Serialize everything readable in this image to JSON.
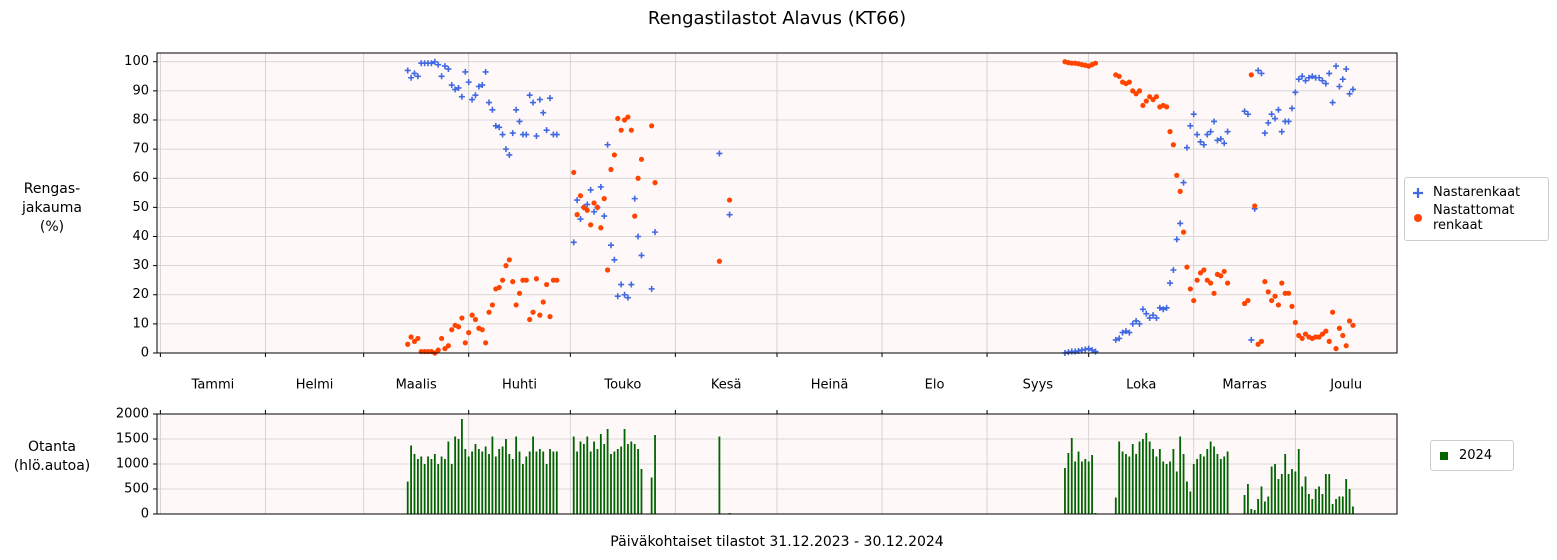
{
  "chart_data": [
    {
      "type": "scatter",
      "title": "Rengastilastot Alavus (KT66)",
      "ylabel": [
        "Rengas-",
        "jakauma",
        "(%)"
      ],
      "xlim": [
        0,
        366
      ],
      "xticks": [
        1,
        32,
        61,
        92,
        122,
        153,
        183,
        214,
        245,
        275,
        306,
        336
      ],
      "month_labels": [
        "Tammi",
        "Helmi",
        "Maalis",
        "Huhti",
        "Touko",
        "Kesä",
        "Heinä",
        "Elo",
        "Syys",
        "Loka",
        "Marras",
        "Joulu"
      ],
      "ylim": [
        0,
        103
      ],
      "yticks": [
        0,
        10,
        20,
        30,
        40,
        50,
        60,
        70,
        80,
        90,
        100
      ],
      "grid": true,
      "legend": "right",
      "x": [
        74,
        75,
        76,
        77,
        78,
        79,
        80,
        81,
        82,
        83,
        84,
        85,
        86,
        87,
        88,
        89,
        90,
        91,
        92,
        93,
        94,
        95,
        96,
        97,
        98,
        99,
        100,
        101,
        102,
        103,
        104,
        105,
        106,
        107,
        108,
        109,
        110,
        111,
        112,
        113,
        114,
        115,
        116,
        117,
        118,
        123,
        124,
        125,
        126,
        127,
        128,
        129,
        130,
        131,
        132,
        133,
        134,
        135,
        136,
        137,
        138,
        139,
        140,
        141,
        142,
        143,
        146,
        147,
        166,
        169,
        268,
        269,
        270,
        271,
        272,
        273,
        274,
        275,
        276,
        277,
        283,
        284,
        285,
        286,
        287,
        288,
        289,
        290,
        291,
        292,
        293,
        294,
        295,
        296,
        297,
        298,
        299,
        300,
        301,
        302,
        303,
        304,
        305,
        306,
        307,
        308,
        309,
        310,
        311,
        312,
        313,
        314,
        315,
        316,
        321,
        322,
        323,
        324,
        325,
        326,
        327,
        328,
        329,
        330,
        331,
        332,
        333,
        334,
        335,
        336,
        337,
        338,
        339,
        340,
        341,
        342,
        343,
        344,
        345,
        346,
        347,
        348,
        349,
        350,
        351,
        352,
        353
      ],
      "series": [
        {
          "name": "Nastarenkaat",
          "color": "#4169e1",
          "marker": "plus",
          "values": [
            97,
            94.5,
            96,
            95,
            99.5,
            99.5,
            99.5,
            99.5,
            100,
            99,
            95,
            98.5,
            97.5,
            92,
            90.5,
            91,
            88,
            96.5,
            93,
            87,
            88.5,
            91.5,
            92,
            96.5,
            86,
            83.5,
            78,
            77.5,
            75,
            70,
            68,
            75.5,
            83.5,
            79.5,
            75,
            75,
            88.5,
            86,
            74.5,
            87,
            82.5,
            76.5,
            87.5,
            75,
            75,
            38,
            52.5,
            46,
            50,
            51,
            56,
            48.5,
            50,
            57,
            47,
            71.5,
            37,
            32,
            19.5,
            23.5,
            20,
            19,
            23.5,
            53,
            40,
            33.5,
            22,
            41.5,
            68.5,
            47.5,
            0,
            0.3,
            0.5,
            0.5,
            0.7,
            1,
            1.2,
            1.5,
            1,
            0.5,
            4.5,
            5,
            7,
            7.5,
            7,
            10,
            11,
            10,
            15,
            13.5,
            12,
            13,
            12,
            15.5,
            15,
            15.5,
            24,
            28.5,
            39,
            44.5,
            58.5,
            70.5,
            78,
            82,
            75,
            72.5,
            71.5,
            75,
            76,
            79.5,
            73,
            73.5,
            72,
            76,
            83,
            82,
            4.5,
            49.5,
            97,
            96,
            75.5,
            79,
            82,
            80.5,
            83.5,
            76,
            79.5,
            79.5,
            84,
            89.5,
            94,
            95,
            93.5,
            94.5,
            95,
            94.5,
            94.5,
            93.5,
            92.5,
            96,
            86,
            98.5,
            91.5,
            94,
            97.5,
            89,
            90.5
          ]
        },
        {
          "name": "Nastattomat renkaat",
          "color": "#ff4500",
          "marker": "circle",
          "values": [
            3,
            5.5,
            4,
            5,
            0.5,
            0.5,
            0.5,
            0.5,
            0,
            1,
            5,
            1.5,
            2.5,
            8,
            9.5,
            9,
            12,
            3.5,
            7,
            13,
            11.5,
            8.5,
            8,
            3.5,
            14,
            16.5,
            22,
            22.5,
            25,
            30,
            32,
            24.5,
            16.5,
            20.5,
            25,
            25,
            11.5,
            14,
            25.5,
            13,
            17.5,
            23.5,
            12.5,
            25,
            25,
            62,
            47.5,
            54,
            50,
            49,
            44,
            51.5,
            50,
            43,
            53,
            28.5,
            63,
            68,
            80.5,
            76.5,
            80,
            81,
            76.5,
            47,
            60,
            66.5,
            78,
            58.5,
            31.5,
            52.5,
            100,
            99.7,
            99.5,
            99.5,
            99.3,
            99,
            98.8,
            98.5,
            99,
            99.5,
            95.5,
            95,
            93,
            92.5,
            93,
            90,
            89,
            90,
            85,
            86.5,
            88,
            87,
            88,
            84.5,
            85,
            84.5,
            76,
            71.5,
            61,
            55.5,
            41.5,
            29.5,
            22,
            18,
            25,
            27.5,
            28.5,
            25,
            24,
            20.5,
            27,
            26.5,
            28,
            24,
            17,
            18,
            95.5,
            50.5,
            3,
            4,
            24.5,
            21,
            18,
            19.5,
            16.5,
            24,
            20.5,
            20.5,
            16,
            10.5,
            6,
            5,
            6.5,
            5.5,
            5,
            5.5,
            5.5,
            6.5,
            7.5,
            4,
            14,
            1.5,
            8.5,
            6,
            2.5,
            11,
            9.5
          ]
        }
      ]
    },
    {
      "type": "bar",
      "ylabel": [
        "Otanta",
        "(hlö.autoa)"
      ],
      "xlabel": "Päiväkohtaiset tilastot 31.12.2023 - 30.12.2024",
      "xlim": [
        0,
        366
      ],
      "xticks": [
        1,
        32,
        61,
        92,
        122,
        153,
        183,
        214,
        245,
        275,
        306,
        336
      ],
      "ylim": [
        0,
        2000
      ],
      "yticks": [
        0,
        500,
        1000,
        1500,
        2000
      ],
      "grid": true,
      "legend": "right",
      "x": [
        74,
        75,
        76,
        77,
        78,
        79,
        80,
        81,
        82,
        83,
        84,
        85,
        86,
        87,
        88,
        89,
        90,
        91,
        92,
        93,
        94,
        95,
        96,
        97,
        98,
        99,
        100,
        101,
        102,
        103,
        104,
        105,
        106,
        107,
        108,
        109,
        110,
        111,
        112,
        113,
        114,
        115,
        116,
        117,
        118,
        123,
        124,
        125,
        126,
        127,
        128,
        129,
        130,
        131,
        132,
        133,
        134,
        135,
        136,
        137,
        138,
        139,
        140,
        141,
        142,
        143,
        146,
        147,
        166,
        169,
        268,
        269,
        270,
        271,
        272,
        273,
        274,
        275,
        276,
        277,
        283,
        284,
        285,
        286,
        287,
        288,
        289,
        290,
        291,
        292,
        293,
        294,
        295,
        296,
        297,
        298,
        299,
        300,
        301,
        302,
        303,
        304,
        305,
        306,
        307,
        308,
        309,
        310,
        311,
        312,
        313,
        314,
        315,
        316,
        321,
        322,
        323,
        324,
        325,
        326,
        327,
        328,
        329,
        330,
        331,
        332,
        333,
        334,
        335,
        336,
        337,
        338,
        339,
        340,
        341,
        342,
        343,
        344,
        345,
        346,
        347,
        348,
        349,
        350,
        351,
        352,
        353
      ],
      "series": [
        {
          "name": "2024",
          "color": "#006400",
          "marker": "square",
          "values": [
            650,
            1370,
            1200,
            1100,
            1150,
            1000,
            1150,
            1100,
            1200,
            1000,
            1150,
            1100,
            1450,
            1000,
            1550,
            1500,
            1900,
            1300,
            1150,
            1250,
            1400,
            1300,
            1250,
            1350,
            1200,
            1550,
            1150,
            1300,
            1350,
            1500,
            1200,
            1100,
            1550,
            1250,
            1000,
            1150,
            1250,
            1550,
            1250,
            1300,
            1250,
            1000,
            1300,
            1250,
            1250,
            1550,
            1250,
            1450,
            1400,
            1550,
            1250,
            1450,
            1300,
            1600,
            1400,
            1700,
            1200,
            1250,
            1300,
            1350,
            1700,
            1400,
            1450,
            1400,
            1300,
            900,
            730,
            1580,
            1550,
            20,
            920,
            1220,
            1520,
            1050,
            1250,
            1050,
            1100,
            1050,
            1180,
            20,
            330,
            1450,
            1250,
            1200,
            1150,
            1400,
            1200,
            1450,
            1500,
            1620,
            1450,
            1300,
            1150,
            1300,
            1050,
            1000,
            1050,
            1300,
            850,
            1550,
            1200,
            650,
            450,
            1000,
            1100,
            1200,
            1150,
            1300,
            1450,
            1350,
            1200,
            1100,
            1150,
            1250,
            380,
            600,
            100,
            80,
            300,
            550,
            250,
            350,
            950,
            1000,
            700,
            800,
            1200,
            800,
            900,
            850,
            1300,
            550,
            750,
            400,
            300,
            500,
            550,
            400,
            800,
            800,
            200,
            300,
            350,
            350,
            700,
            500,
            150
          ]
        }
      ]
    }
  ]
}
